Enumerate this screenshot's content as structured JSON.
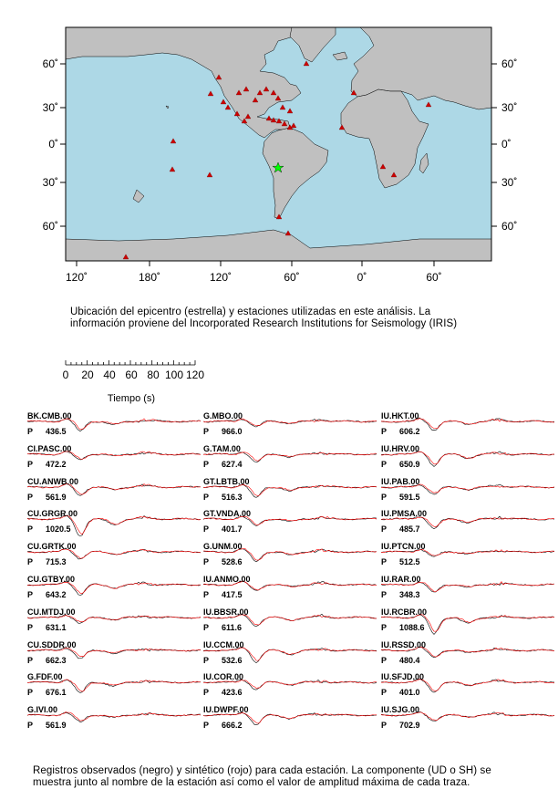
{
  "map": {
    "lat_ticks_left": [
      "60˚",
      "30˚",
      "0˚",
      "30˚",
      "60˚"
    ],
    "lat_ticks_right": [
      "60˚",
      "30˚",
      "0˚",
      "30˚",
      "60˚"
    ],
    "lon_ticks": [
      "120˚",
      "180˚",
      "120˚",
      "60˚",
      "0˚",
      "60˚"
    ],
    "colors": {
      "ocean": "#add8e6",
      "land": "#c0c0c0",
      "station": "#cc0000",
      "epicenter": "#00ff00"
    },
    "icons": {
      "station": "triangle-icon",
      "epicenter": "star-icon"
    },
    "caption_line1": "Ubicación del epicentro (estrella) y estaciones utilizadas en este análisis.  La",
    "caption_line2": "información proviene del Incorporated Research Institutions for Seismology (IRIS)"
  },
  "time_scale": {
    "ticks": [
      "0",
      "20",
      "40",
      "60",
      "80",
      "100",
      "120"
    ],
    "label": "Tiempo (s)"
  },
  "trace_colors": {
    "observed": "#000000",
    "synthetic": "#ff0000"
  },
  "columns": [
    [
      {
        "station": "BK.CMB.00",
        "phase": "P",
        "amplitude": "436.5"
      },
      {
        "station": "CI.PASC.00",
        "phase": "P",
        "amplitude": "472.2"
      },
      {
        "station": "CU.ANWB.00",
        "phase": "P",
        "amplitude": "561.9"
      },
      {
        "station": "CU.GRGR.00",
        "phase": "P",
        "amplitude": "1020.5"
      },
      {
        "station": "CU.GRTK.00",
        "phase": "P",
        "amplitude": "715.3"
      },
      {
        "station": "CU.GTBY.00",
        "phase": "P",
        "amplitude": "643.2"
      },
      {
        "station": "CU.MTDJ.00",
        "phase": "P",
        "amplitude": "631.1"
      },
      {
        "station": "CU.SDDR.00",
        "phase": "P",
        "amplitude": "662.3"
      },
      {
        "station": "G.FDF.00",
        "phase": "P",
        "amplitude": "676.1"
      },
      {
        "station": "G.IVI.00",
        "phase": "P",
        "amplitude": "561.9"
      }
    ],
    [
      {
        "station": "G.MBO.00",
        "phase": "P",
        "amplitude": "966.0"
      },
      {
        "station": "G.TAM.00",
        "phase": "P",
        "amplitude": "627.4"
      },
      {
        "station": "GT.LBTB.00",
        "phase": "P",
        "amplitude": "516.3"
      },
      {
        "station": "GT.VNDA.00",
        "phase": "P",
        "amplitude": "401.7"
      },
      {
        "station": "G.UNM.00",
        "phase": "P",
        "amplitude": "528.6"
      },
      {
        "station": "IU.ANMO.00",
        "phase": "P",
        "amplitude": "417.5"
      },
      {
        "station": "IU.BBSR.00",
        "phase": "P",
        "amplitude": "611.6"
      },
      {
        "station": "IU.CCM.00",
        "phase": "P",
        "amplitude": "532.6"
      },
      {
        "station": "IU.COR.00",
        "phase": "P",
        "amplitude": "423.6"
      },
      {
        "station": "IU.DWPF.00",
        "phase": "P",
        "amplitude": "666.2"
      }
    ],
    [
      {
        "station": "IU.HKT.00",
        "phase": "P",
        "amplitude": "606.2"
      },
      {
        "station": "IU.HRV.00",
        "phase": "P",
        "amplitude": "650.9"
      },
      {
        "station": "IU.PAB.00",
        "phase": "P",
        "amplitude": "591.5"
      },
      {
        "station": "IU.PMSA.00",
        "phase": "P",
        "amplitude": "485.7"
      },
      {
        "station": "IU.PTCN.00",
        "phase": "P",
        "amplitude": "512.5"
      },
      {
        "station": "IU.RAR.00",
        "phase": "P",
        "amplitude": "348.3"
      },
      {
        "station": "IU.RCBR.00",
        "phase": "P",
        "amplitude": "1088.6"
      },
      {
        "station": "IU.RSSD.00",
        "phase": "P",
        "amplitude": "480.4"
      },
      {
        "station": "IU.SFJD.00",
        "phase": "P",
        "amplitude": "401.0"
      },
      {
        "station": "IU.SJG.00",
        "phase": "P",
        "amplitude": "702.9"
      }
    ]
  ],
  "caption_line1": "Registros observados (negro) y sintético (rojo) para cada estación.  La componente (UD o SH) se",
  "caption_line2": "muestra junto al nombre de la estación así como el valor de amplitud máxima de cada traza."
}
